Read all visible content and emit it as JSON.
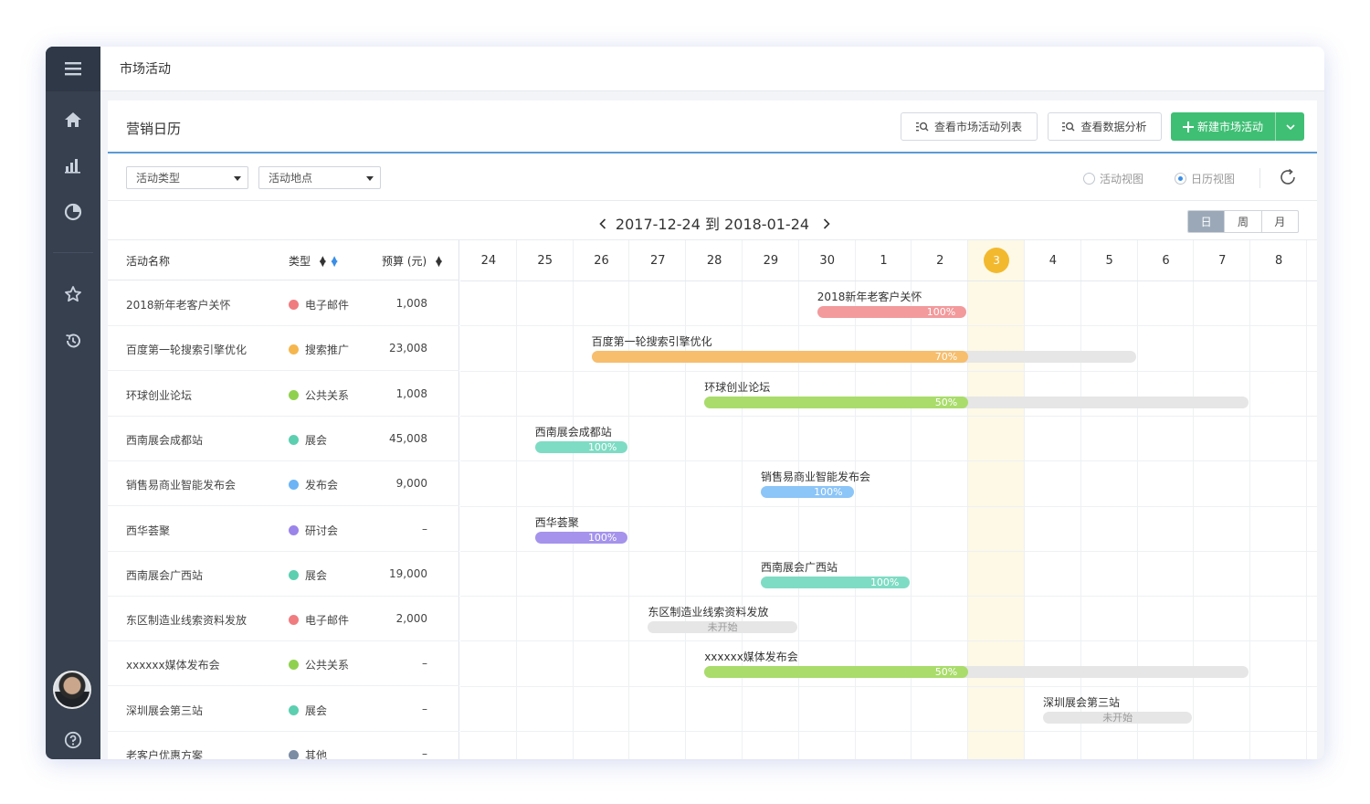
{
  "topbar": {
    "title": "市场活动"
  },
  "card": {
    "title": "营销日历",
    "buttons": {
      "view_list": "查看市场活动列表",
      "view_analysis": "查看数据分析",
      "new_activity": "新建市场活动"
    }
  },
  "filters": {
    "type_select": "活动类型",
    "location_select": "活动地点",
    "radio_activity_view": "活动视图",
    "radio_calendar_view": "日历视图"
  },
  "range": {
    "text": "2017-12-24 到 2018-01-24",
    "modes": [
      "日",
      "周",
      "月"
    ],
    "active_mode": "日"
  },
  "table": {
    "headers": {
      "name": "活动名称",
      "type": "类型",
      "budget": "预算 (元)"
    },
    "rows": [
      {
        "name": "2018新年老客户关怀",
        "type": "电子邮件",
        "type_color": "#f07c80",
        "budget": "1,008"
      },
      {
        "name": "百度第一轮搜索引擎优化",
        "type": "搜索推广",
        "type_color": "#f5b64e",
        "budget": "23,008"
      },
      {
        "name": "环球创业论坛",
        "type": "公共关系",
        "type_color": "#8fd14f",
        "budget": "1,008"
      },
      {
        "name": "西南展会成都站",
        "type": "展会",
        "type_color": "#5ccfb0",
        "budget": "45,008"
      },
      {
        "name": "销售易商业智能发布会",
        "type": "发布会",
        "type_color": "#6cb4f5",
        "budget": "9,000"
      },
      {
        "name": "西华荟聚",
        "type": "研讨会",
        "type_color": "#9b84ea",
        "budget": "–"
      },
      {
        "name": "西南展会广西站",
        "type": "展会",
        "type_color": "#5ccfb0",
        "budget": "19,000"
      },
      {
        "name": "东区制造业线索资料发放",
        "type": "电子邮件",
        "type_color": "#f07c80",
        "budget": "2,000"
      },
      {
        "name": "xxxxxx媒体发布会",
        "type": "公共关系",
        "type_color": "#8fd14f",
        "budget": "–"
      },
      {
        "name": "深圳展会第三站",
        "type": "展会",
        "type_color": "#5ccfb0",
        "budget": "–"
      },
      {
        "name": "老客户优惠方案",
        "type": "其他",
        "type_color": "#7b8ca3",
        "budget": "–"
      }
    ]
  },
  "calendar": {
    "days": [
      "24",
      "25",
      "26",
      "27",
      "28",
      "29",
      "30",
      "1",
      "2",
      "3",
      "4",
      "5",
      "6",
      "7",
      "8"
    ],
    "today": "3",
    "bars": [
      {
        "label": "2018新年老客户关怀",
        "start_day": "30",
        "end_day": "2",
        "progress_label": "100%",
        "progress": 1.0,
        "color": "#f29a9c"
      },
      {
        "label": "百度第一轮搜索引擎优化",
        "start_day": "26",
        "end_day": "5",
        "progress_label": "70%",
        "progress": 0.7,
        "color": "#f7be6d"
      },
      {
        "label": "环球创业论坛",
        "start_day": "28",
        "end_day": "7",
        "progress_label": "50%",
        "progress": 0.5,
        "color": "#a9dc6b"
      },
      {
        "label": "西南展会成都站",
        "start_day": "25",
        "end_day": "26",
        "progress_label": "100%",
        "progress": 1.0,
        "color": "#7fdcc4"
      },
      {
        "label": "销售易商业智能发布会",
        "start_day": "29",
        "end_day": "30",
        "progress_label": "100%",
        "progress": 1.0,
        "color": "#8cc5f7"
      },
      {
        "label": "西华荟聚",
        "start_day": "25",
        "end_day": "26",
        "progress_label": "100%",
        "progress": 1.0,
        "color": "#a593ec"
      },
      {
        "label": "西南展会广西站",
        "start_day": "29",
        "end_day": "1",
        "progress_label": "100%",
        "progress": 1.0,
        "color": "#7fdcc4"
      },
      {
        "label": "东区制造业线索资料发放",
        "start_day": "27",
        "end_day": "29",
        "progress_label": "未开始",
        "progress": 0.0,
        "color": "#e6e6e6"
      },
      {
        "label": "xxxxxx媒体发布会",
        "start_day": "28",
        "end_day": "7",
        "progress_label": "50%",
        "progress": 0.5,
        "color": "#a9dc6b"
      },
      {
        "label": "深圳展会第三站",
        "start_day": "4",
        "end_day": "6",
        "progress_label": "未开始",
        "progress": 0.0,
        "color": "#e6e6e6"
      }
    ]
  }
}
